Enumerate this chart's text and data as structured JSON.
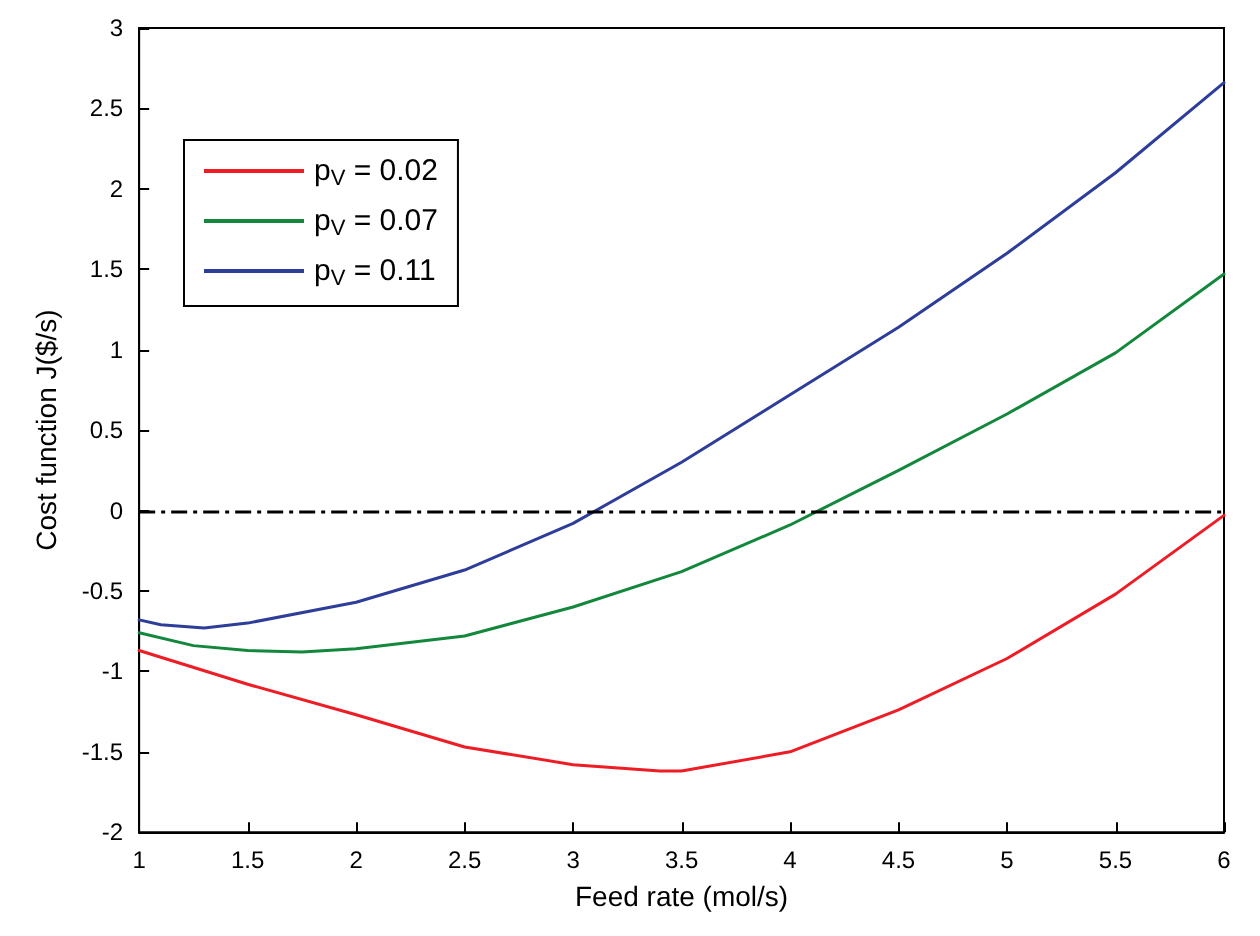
{
  "chart_data": {
    "type": "line",
    "xlabel": "Feed rate (mol/s)",
    "ylabel": "Cost function J($/s)",
    "xlim": [
      1,
      6
    ],
    "ylim": [
      -2,
      3
    ],
    "xticks": [
      1,
      1.5,
      2,
      2.5,
      3,
      3.5,
      4,
      4.5,
      5,
      5.5,
      6
    ],
    "yticks": [
      -2,
      -1.5,
      -1,
      -0.5,
      0,
      0.5,
      1,
      1.5,
      2,
      2.5,
      3
    ],
    "grid": false,
    "legend": "top left",
    "marker": "none",
    "line_style": "solid",
    "series": [
      {
        "name": "p$_{V}$ = 0.02",
        "color": "#ee1c24",
        "x": [
          1,
          1.5,
          2,
          2.5,
          3,
          3.4,
          3.5,
          4,
          4.5,
          5,
          5.5,
          6
        ],
        "values": [
          -0.87,
          -1.08,
          -1.27,
          -1.47,
          -1.58,
          -1.62,
          -1.62,
          -1.5,
          -1.24,
          -0.92,
          -0.52,
          -0.03
        ]
      },
      {
        "name": "p$_{V}$ = 0.07",
        "color": "#13873c",
        "x": [
          1,
          1.25,
          1.5,
          1.75,
          2,
          2.5,
          3,
          3.5,
          4,
          4.5,
          5,
          5.5,
          6
        ],
        "values": [
          -0.76,
          -0.84,
          -0.87,
          -0.88,
          -0.86,
          -0.78,
          -0.6,
          -0.38,
          -0.09,
          0.25,
          0.6,
          0.98,
          1.47
        ]
      },
      {
        "name": "p$_{V}$ = 0.11",
        "color": "#2e3d99",
        "x": [
          1,
          1.1,
          1.3,
          1.5,
          2,
          2.5,
          3,
          3.5,
          4,
          4.5,
          5,
          5.5,
          6
        ],
        "values": [
          -0.68,
          -0.71,
          -0.73,
          -0.7,
          -0.57,
          -0.37,
          -0.08,
          0.3,
          0.72,
          1.14,
          1.6,
          2.1,
          2.66
        ]
      }
    ],
    "ref_lines": [
      {
        "axis": "y",
        "value": 0,
        "color": "#000000",
        "line_style": "dashdot"
      }
    ]
  }
}
